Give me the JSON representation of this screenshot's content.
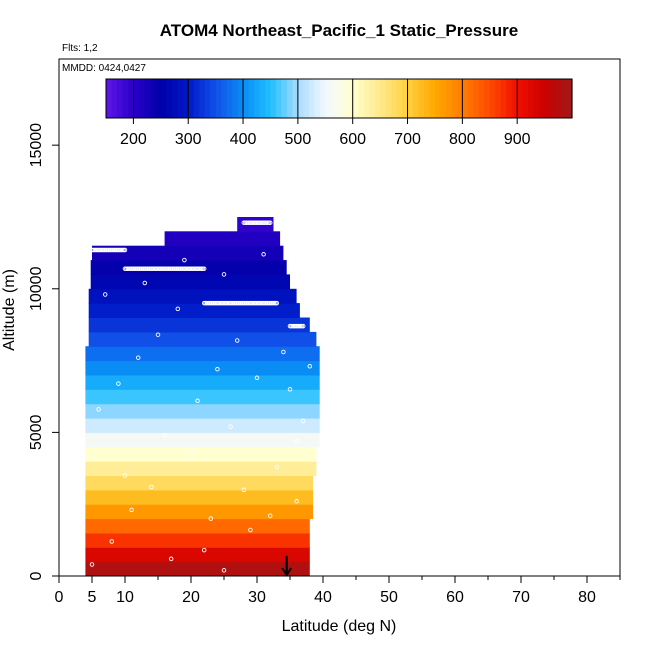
{
  "chart_data": {
    "type": "heatmap",
    "title": "ATOM4 Northeast_Pacific_1 Static_Pressure",
    "subtitle_flights": "Flts: 1,2",
    "subtitle_dates": "MMDD: 0424,0427",
    "xlabel": "Latitude (deg N)",
    "ylabel": "Altitude (m)",
    "xlim": [
      0,
      85
    ],
    "ylim": [
      0,
      18000
    ],
    "x_ticks": [
      0,
      5,
      10,
      20,
      30,
      40,
      50,
      60,
      70,
      80
    ],
    "y_ticks": [
      0,
      5000,
      10000,
      15000
    ],
    "grid": false,
    "colorbar": {
      "min": 150,
      "max": 1000,
      "tick_values": [
        200,
        300,
        400,
        500,
        600,
        700,
        800,
        900
      ],
      "colors": [
        "#5e17e6",
        "#2b00c9",
        "#0000a8",
        "#0018c8",
        "#1050e8",
        "#0a8cf5",
        "#1fbfff",
        "#a9dcff",
        "#f2f8ff",
        "#ffffd0",
        "#ffe98a",
        "#ffd040",
        "#ffa800",
        "#ff7d00",
        "#ff4a00",
        "#f01000",
        "#cc0000",
        "#9e1a1a"
      ]
    },
    "altitude_bands": [
      {
        "alt_min": 0,
        "alt_max": 500,
        "lat_min": 4,
        "lat_max": 38,
        "pressure": 980
      },
      {
        "alt_min": 500,
        "alt_max": 1000,
        "lat_min": 4,
        "lat_max": 38,
        "pressure": 930
      },
      {
        "alt_min": 1000,
        "alt_max": 1500,
        "lat_min": 4,
        "lat_max": 38,
        "pressure": 870
      },
      {
        "alt_min": 1500,
        "alt_max": 2000,
        "lat_min": 4,
        "lat_max": 38,
        "pressure": 820
      },
      {
        "alt_min": 2000,
        "alt_max": 2500,
        "lat_min": 4,
        "lat_max": 38.5,
        "pressure": 770
      },
      {
        "alt_min": 2500,
        "alt_max": 3000,
        "lat_min": 4,
        "lat_max": 38.5,
        "pressure": 725
      },
      {
        "alt_min": 3000,
        "alt_max": 3500,
        "lat_min": 4,
        "lat_max": 38.5,
        "pressure": 680
      },
      {
        "alt_min": 3500,
        "alt_max": 4000,
        "lat_min": 4,
        "lat_max": 39,
        "pressure": 640
      },
      {
        "alt_min": 4000,
        "alt_max": 4500,
        "lat_min": 4,
        "lat_max": 39,
        "pressure": 600
      },
      {
        "alt_min": 4500,
        "alt_max": 5000,
        "lat_min": 4,
        "lat_max": 39.5,
        "pressure": 560
      },
      {
        "alt_min": 5000,
        "alt_max": 5500,
        "lat_min": 4,
        "lat_max": 39.5,
        "pressure": 525
      },
      {
        "alt_min": 5500,
        "alt_max": 6000,
        "lat_min": 4,
        "lat_max": 39.5,
        "pressure": 490
      },
      {
        "alt_min": 6000,
        "alt_max": 6500,
        "lat_min": 4,
        "lat_max": 39.5,
        "pressure": 460
      },
      {
        "alt_min": 6500,
        "alt_max": 7000,
        "lat_min": 4,
        "lat_max": 39.5,
        "pressure": 430
      },
      {
        "alt_min": 7000,
        "alt_max": 7500,
        "lat_min": 4,
        "lat_max": 39.5,
        "pressure": 400
      },
      {
        "alt_min": 7500,
        "alt_max": 8000,
        "lat_min": 4,
        "lat_max": 39.5,
        "pressure": 375
      },
      {
        "alt_min": 8000,
        "alt_max": 8500,
        "lat_min": 4.5,
        "lat_max": 39,
        "pressure": 350
      },
      {
        "alt_min": 8500,
        "alt_max": 9000,
        "lat_min": 4.5,
        "lat_max": 38,
        "pressure": 325
      },
      {
        "alt_min": 9000,
        "alt_max": 9500,
        "lat_min": 4.5,
        "lat_max": 36.5,
        "pressure": 305
      },
      {
        "alt_min": 9500,
        "alt_max": 10000,
        "lat_min": 4.5,
        "lat_max": 36,
        "pressure": 285
      },
      {
        "alt_min": 10000,
        "alt_max": 10500,
        "lat_min": 4.8,
        "lat_max": 35,
        "pressure": 265
      },
      {
        "alt_min": 10500,
        "alt_max": 11000,
        "lat_min": 4.8,
        "lat_max": 34.5,
        "pressure": 245
      },
      {
        "alt_min": 11000,
        "alt_max": 11500,
        "lat_min": 5,
        "lat_max": 34,
        "pressure": 228
      },
      {
        "alt_min": 11500,
        "alt_max": 12000,
        "lat_min": 16,
        "lat_max": 33.5,
        "pressure": 210
      },
      {
        "alt_min": 12000,
        "alt_max": 12500,
        "lat_min": 27,
        "lat_max": 32.5,
        "pressure": 195
      }
    ],
    "flight_tracks": [
      {
        "alt": 11350,
        "lat_start": 5,
        "lat_end": 10
      },
      {
        "alt": 10700,
        "lat_start": 10,
        "lat_end": 22
      },
      {
        "alt": 9500,
        "lat_start": 22,
        "lat_end": 33
      },
      {
        "alt": 12300,
        "lat_start": 28,
        "lat_end": 32
      },
      {
        "alt": 8700,
        "lat_start": 35,
        "lat_end": 37
      }
    ],
    "profile_points": [
      {
        "lat": 5,
        "alt": 400
      },
      {
        "lat": 8,
        "alt": 1200
      },
      {
        "lat": 11,
        "alt": 2300
      },
      {
        "lat": 14,
        "alt": 3100
      },
      {
        "lat": 17,
        "alt": 600
      },
      {
        "lat": 20,
        "alt": 4300
      },
      {
        "lat": 23,
        "alt": 2000
      },
      {
        "lat": 26,
        "alt": 5200
      },
      {
        "lat": 29,
        "alt": 1600
      },
      {
        "lat": 33,
        "alt": 3800
      },
      {
        "lat": 36,
        "alt": 2600
      },
      {
        "lat": 6,
        "alt": 5800
      },
      {
        "lat": 9,
        "alt": 6700
      },
      {
        "lat": 12,
        "alt": 7600
      },
      {
        "lat": 15,
        "alt": 8400
      },
      {
        "lat": 18,
        "alt": 9300
      },
      {
        "lat": 21,
        "alt": 6100
      },
      {
        "lat": 24,
        "alt": 7200
      },
      {
        "lat": 27,
        "alt": 8200
      },
      {
        "lat": 30,
        "alt": 6900
      },
      {
        "lat": 34,
        "alt": 7800
      },
      {
        "lat": 37,
        "alt": 5400
      },
      {
        "lat": 38,
        "alt": 7300
      },
      {
        "lat": 7,
        "alt": 9800
      },
      {
        "lat": 13,
        "alt": 10200
      },
      {
        "lat": 19,
        "alt": 11000
      },
      {
        "lat": 25,
        "alt": 10500
      },
      {
        "lat": 31,
        "alt": 11200
      },
      {
        "lat": 36,
        "alt": 4700
      },
      {
        "lat": 10,
        "alt": 3500
      },
      {
        "lat": 22,
        "alt": 900
      },
      {
        "lat": 28,
        "alt": 3000
      },
      {
        "lat": 16,
        "alt": 4900
      },
      {
        "lat": 32,
        "alt": 2100
      },
      {
        "lat": 35,
        "alt": 6500
      },
      {
        "lat": 25,
        "alt": 200
      }
    ],
    "marker": {
      "lat": 34.5,
      "alt_from": 700,
      "alt_to": 0,
      "type": "arrow-down"
    }
  }
}
